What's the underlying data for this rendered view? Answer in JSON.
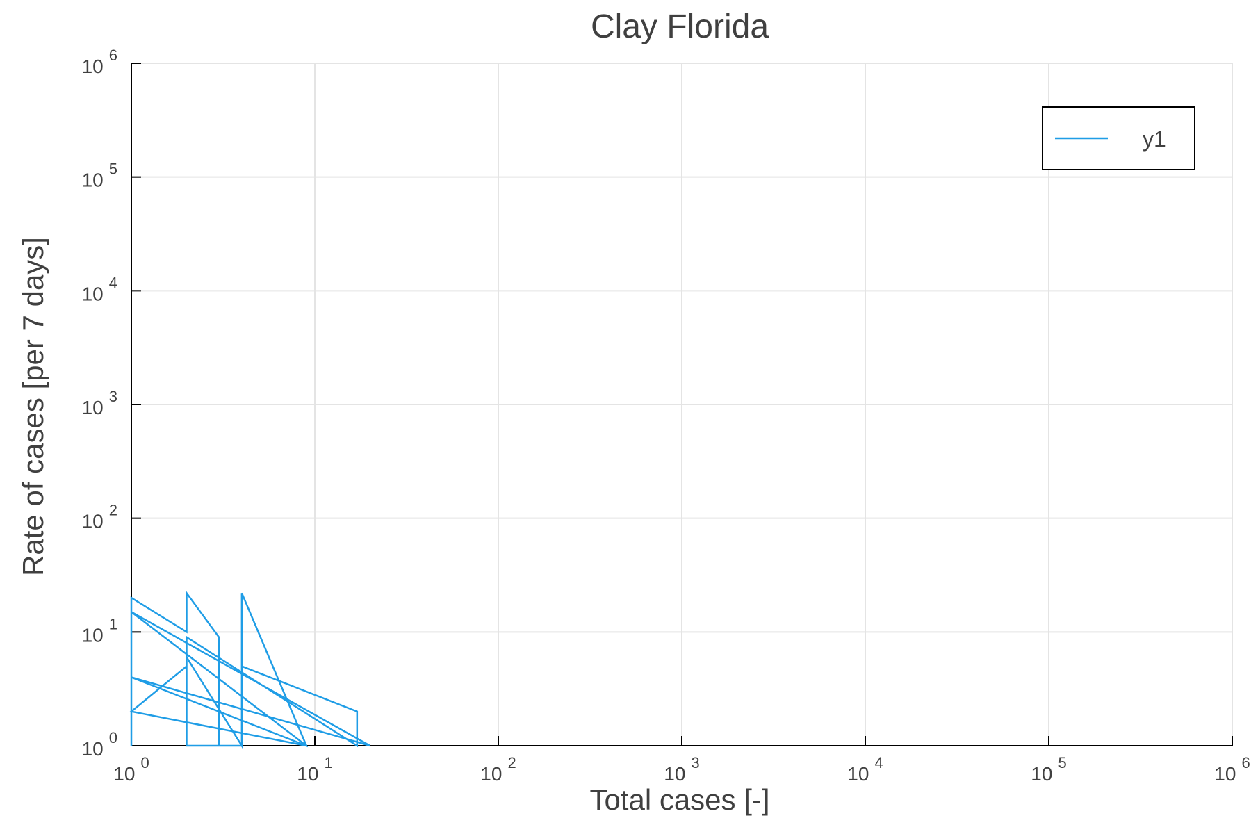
{
  "chart_data": {
    "type": "line",
    "title": "Clay Florida",
    "xlabel": "Total cases [-]",
    "ylabel": "Rate of cases [per 7 days]",
    "xscale": "log",
    "yscale": "log",
    "xlim": [
      1,
      1000000
    ],
    "ylim": [
      1,
      1000000
    ],
    "grid": true,
    "legend_position": "top-right",
    "x_ticks": [
      {
        "base": "10",
        "exp": "0"
      },
      {
        "base": "10",
        "exp": "1"
      },
      {
        "base": "10",
        "exp": "2"
      },
      {
        "base": "10",
        "exp": "3"
      },
      {
        "base": "10",
        "exp": "4"
      },
      {
        "base": "10",
        "exp": "5"
      },
      {
        "base": "10",
        "exp": "6"
      }
    ],
    "y_ticks": [
      {
        "base": "10",
        "exp": "0"
      },
      {
        "base": "10",
        "exp": "1"
      },
      {
        "base": "10",
        "exp": "2"
      },
      {
        "base": "10",
        "exp": "3"
      },
      {
        "base": "10",
        "exp": "4"
      },
      {
        "base": "10",
        "exp": "5"
      },
      {
        "base": "10",
        "exp": "6"
      }
    ],
    "series": [
      {
        "name": "y1",
        "color": "#1f9de6",
        "x": [
          1,
          1,
          2,
          2,
          3,
          3,
          4,
          4,
          9,
          1,
          20,
          1,
          9,
          1,
          2,
          2,
          4,
          4,
          17,
          17,
          2,
          2,
          4
        ],
        "y": [
          1,
          20,
          10,
          22,
          9,
          1,
          1,
          22,
          1,
          4,
          1,
          15,
          1,
          2,
          5,
          6,
          1,
          5,
          2,
          1,
          9,
          1,
          1
        ]
      }
    ]
  }
}
